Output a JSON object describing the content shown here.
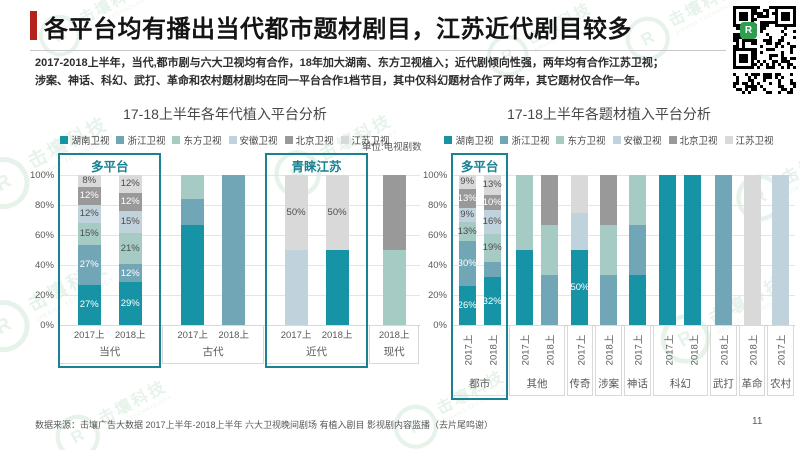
{
  "slide": {
    "title": "各平台均有播出当代都市题材剧目，江苏近代剧目较多",
    "body_lines": [
      "2017-2018上半年，当代,都市剧与六大卫视均有合作，18年加大湖南、东方卫视植入；近代剧倾向性强，两年均有合作江苏卫视；",
      "涉案、神话、科幻、武打、革命和农村题材剧均在同一平台合作1档节目，其中仅科幻题材合作了两年，其它题材仅合作一年。"
    ],
    "unit_label": "单位:电视剧数",
    "footer_source": "数据来源：击壤广告大数据  2017上半年-2018上半年  六大卫视晚间剧场  有植入剧目 影视剧内容监播（去片尾鸣谢）",
    "page_number": "11",
    "watermark_text": "击壤科技",
    "watermark_subtext": "JIRANG TECHNOLOGY",
    "watermark_logo_letter": "R"
  },
  "colors": {
    "accent_red": "#b3231c",
    "annotation_teal": "#1a8292",
    "watermark_green": "#3fa258",
    "qr_logo_green": "#2f9e4f",
    "series": {
      "湖南卫视": "#1693a5",
      "浙江卫视": "#71a6b6",
      "东方卫视": "#a5cbc4",
      "安徽卫视": "#c0d2dc",
      "北京卫视": "#999999",
      "江苏卫视": "#d9d9d9"
    }
  },
  "legend": [
    "湖南卫视",
    "浙江卫视",
    "东方卫视",
    "安徽卫视",
    "北京卫视",
    "江苏卫视"
  ],
  "chart_data": [
    {
      "type": "bar",
      "stacked": true,
      "title": "17-18上半年各年代植入平台分析",
      "unit": "单位:电视剧数",
      "ylim": [
        0,
        100
      ],
      "y_ticks": [
        "100%",
        "80%",
        "60%",
        "40%",
        "20%",
        "0%"
      ],
      "grid": true,
      "legend_position": "top",
      "x_tick_rotation": 0,
      "annotations": [
        {
          "label": "多平台",
          "group": "当代"
        },
        {
          "label": "青睐江苏",
          "group": "近代"
        }
      ],
      "groups": [
        {
          "name": "当代",
          "annotation": "多平台",
          "bars": [
            {
              "x": "2017上",
              "segments": [
                {
                  "series": "湖南卫视",
                  "value": 27,
                  "label": "27%"
                },
                {
                  "series": "浙江卫视",
                  "value": 27,
                  "label": "27%"
                },
                {
                  "series": "东方卫视",
                  "value": 15,
                  "label": "15%"
                },
                {
                  "series": "安徽卫视",
                  "value": 12,
                  "label": "12%"
                },
                {
                  "series": "北京卫视",
                  "value": 12,
                  "label": "12%"
                },
                {
                  "series": "江苏卫视",
                  "value": 8,
                  "label": "8%"
                }
              ]
            },
            {
              "x": "2018上",
              "segments": [
                {
                  "series": "湖南卫视",
                  "value": 29,
                  "label": "29%"
                },
                {
                  "series": "浙江卫视",
                  "value": 12,
                  "label": "12%"
                },
                {
                  "series": "东方卫视",
                  "value": 21,
                  "label": "21%"
                },
                {
                  "series": "安徽卫视",
                  "value": 15,
                  "label": "15%"
                },
                {
                  "series": "北京卫视",
                  "value": 12,
                  "label": "12%"
                },
                {
                  "series": "江苏卫视",
                  "value": 12,
                  "label": "12%"
                }
              ]
            }
          ]
        },
        {
          "name": "古代",
          "annotation": "",
          "bars": [
            {
              "x": "2017上",
              "segments": [
                {
                  "series": "湖南卫视",
                  "value": 67,
                  "label": ""
                },
                {
                  "series": "浙江卫视",
                  "value": 17,
                  "label": ""
                },
                {
                  "series": "东方卫视",
                  "value": 16,
                  "label": ""
                }
              ]
            },
            {
              "x": "2018上",
              "segments": [
                {
                  "series": "浙江卫视",
                  "value": 100,
                  "label": ""
                }
              ]
            }
          ]
        },
        {
          "name": "近代",
          "annotation": "青睐江苏",
          "bars": [
            {
              "x": "2017上",
              "segments": [
                {
                  "series": "安徽卫视",
                  "value": 50,
                  "label": ""
                },
                {
                  "series": "江苏卫视",
                  "value": 50,
                  "label": "50%"
                }
              ]
            },
            {
              "x": "2018上",
              "segments": [
                {
                  "series": "湖南卫视",
                  "value": 50,
                  "label": ""
                },
                {
                  "series": "江苏卫视",
                  "value": 50,
                  "label": "50%"
                }
              ]
            }
          ]
        },
        {
          "name": "现代",
          "annotation": "",
          "bars": [
            {
              "x": "2018上",
              "segments": [
                {
                  "series": "东方卫视",
                  "value": 50,
                  "label": ""
                },
                {
                  "series": "北京卫视",
                  "value": 50,
                  "label": ""
                }
              ]
            }
          ]
        }
      ]
    },
    {
      "type": "bar",
      "stacked": true,
      "title": "17-18上半年各题材植入平台分析",
      "unit": "单位:电视剧数",
      "ylim": [
        0,
        100
      ],
      "y_ticks": [
        "100%",
        "80%",
        "60%",
        "40%",
        "20%",
        "0%"
      ],
      "grid": true,
      "legend_position": "top",
      "x_tick_rotation": -90,
      "annotations": [
        {
          "label": "多平台",
          "group": "都市"
        }
      ],
      "groups": [
        {
          "name": "都市",
          "annotation": "多平台",
          "bars": [
            {
              "x": "2017上",
              "segments": [
                {
                  "series": "湖南卫视",
                  "value": 26,
                  "label": "26%"
                },
                {
                  "series": "浙江卫视",
                  "value": 30,
                  "label": "30%"
                },
                {
                  "series": "东方卫视",
                  "value": 13,
                  "label": "13%"
                },
                {
                  "series": "安徽卫视",
                  "value": 9,
                  "label": "9%"
                },
                {
                  "series": "北京卫视",
                  "value": 13,
                  "label": "13%"
                },
                {
                  "series": "江苏卫视",
                  "value": 9,
                  "label": "9%"
                }
              ]
            },
            {
              "x": "2018上",
              "segments": [
                {
                  "series": "湖南卫视",
                  "value": 32,
                  "label": "32%"
                },
                {
                  "series": "浙江卫视",
                  "value": 10,
                  "label": ""
                },
                {
                  "series": "东方卫视",
                  "value": 19,
                  "label": "19%"
                },
                {
                  "series": "安徽卫视",
                  "value": 16,
                  "label": "16%"
                },
                {
                  "series": "北京卫视",
                  "value": 10,
                  "label": "10%"
                },
                {
                  "series": "江苏卫视",
                  "value": 13,
                  "label": "13%"
                }
              ]
            }
          ]
        },
        {
          "name": "其他",
          "annotation": "",
          "bars": [
            {
              "x": "2017上",
              "segments": [
                {
                  "series": "湖南卫视",
                  "value": 50,
                  "label": ""
                },
                {
                  "series": "东方卫视",
                  "value": 50,
                  "label": ""
                }
              ]
            },
            {
              "x": "2018上",
              "segments": [
                {
                  "series": "浙江卫视",
                  "value": 33.3,
                  "label": ""
                },
                {
                  "series": "东方卫视",
                  "value": 33.4,
                  "label": ""
                },
                {
                  "series": "北京卫视",
                  "value": 33.3,
                  "label": ""
                }
              ]
            }
          ]
        },
        {
          "name": "传奇",
          "annotation": "",
          "bars": [
            {
              "x": "2017上",
              "segments": [
                {
                  "series": "湖南卫视",
                  "value": 50,
                  "label": "50%"
                },
                {
                  "series": "安徽卫视",
                  "value": 25,
                  "label": ""
                },
                {
                  "series": "江苏卫视",
                  "value": 25,
                  "label": ""
                }
              ]
            }
          ]
        },
        {
          "name": "涉案",
          "annotation": "",
          "bars": [
            {
              "x": "2018上",
              "segments": [
                {
                  "series": "浙江卫视",
                  "value": 33.3,
                  "label": ""
                },
                {
                  "series": "东方卫视",
                  "value": 33.4,
                  "label": ""
                },
                {
                  "series": "北京卫视",
                  "value": 33.3,
                  "label": ""
                }
              ]
            }
          ]
        },
        {
          "name": "神话",
          "annotation": "",
          "bars": [
            {
              "x": "2017上",
              "segments": [
                {
                  "series": "湖南卫视",
                  "value": 33.3,
                  "label": ""
                },
                {
                  "series": "浙江卫视",
                  "value": 33.4,
                  "label": ""
                },
                {
                  "series": "东方卫视",
                  "value": 33.3,
                  "label": ""
                }
              ]
            }
          ]
        },
        {
          "name": "科幻",
          "annotation": "",
          "bars": [
            {
              "x": "2017上",
              "segments": [
                {
                  "series": "湖南卫视",
                  "value": 100,
                  "label": ""
                }
              ]
            },
            {
              "x": "2018上",
              "segments": [
                {
                  "series": "湖南卫视",
                  "value": 100,
                  "label": ""
                }
              ]
            }
          ]
        },
        {
          "name": "武打",
          "annotation": "",
          "bars": [
            {
              "x": "2018上",
              "segments": [
                {
                  "series": "浙江卫视",
                  "value": 100,
                  "label": ""
                }
              ]
            }
          ]
        },
        {
          "name": "革命",
          "annotation": "",
          "bars": [
            {
              "x": "2018上",
              "segments": [
                {
                  "series": "江苏卫视",
                  "value": 100,
                  "label": ""
                }
              ]
            }
          ]
        },
        {
          "name": "农村",
          "annotation": "",
          "bars": [
            {
              "x": "2017上",
              "segments": [
                {
                  "series": "安徽卫视",
                  "value": 100,
                  "label": ""
                }
              ]
            }
          ]
        }
      ]
    }
  ]
}
